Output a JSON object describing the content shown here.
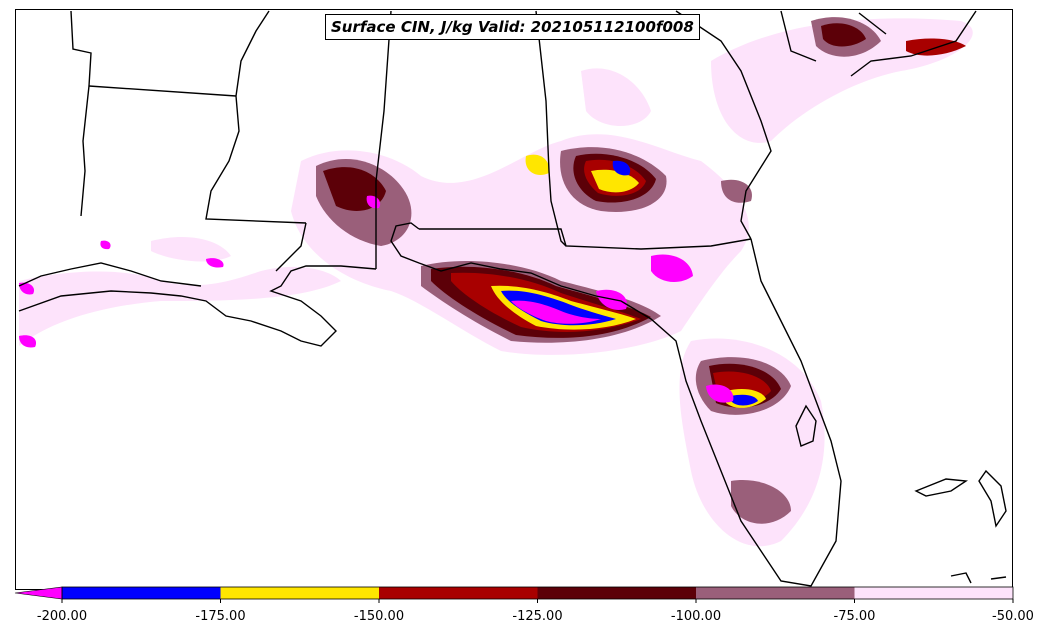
{
  "title": "Surface CIN, J/kg Valid: 202105112100f008",
  "colors": {
    "state_lines": "#000000",
    "background": "#ffffff"
  },
  "colorbar": {
    "extend": "min",
    "extend_color": "#ff00ff",
    "bins": [
      {
        "from": -200,
        "to": -175,
        "color": "#0000ff"
      },
      {
        "from": -175,
        "to": -150,
        "color": "#ffe600"
      },
      {
        "from": -150,
        "to": -125,
        "color": "#a80000"
      },
      {
        "from": -125,
        "to": -100,
        "color": "#5c0008"
      },
      {
        "from": -100,
        "to": -75,
        "color": "#9a5f7a"
      },
      {
        "from": -75,
        "to": -50,
        "color": "#fde3fb"
      }
    ],
    "tick_labels": [
      "-200.00",
      "-175.00",
      "-150.00",
      "-125.00",
      "-100.00",
      "-75.00",
      "-50.00"
    ]
  }
}
